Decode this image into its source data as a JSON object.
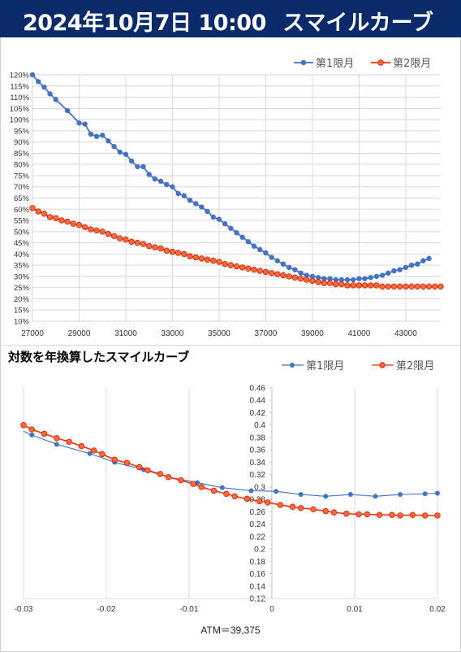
{
  "header": {
    "date": "2024年10月7日 10:00",
    "title": "スマイルカーブ"
  },
  "colors": {
    "first": "#4472c4",
    "second": "#ff2a00",
    "header_bg": "#0a2a6a"
  },
  "chart_data": [
    {
      "type": "line",
      "title": "",
      "xlim": [
        27000,
        44500
      ],
      "ylim": [
        10,
        120
      ],
      "x_ticks": [
        "27000",
        "29000",
        "31000",
        "33000",
        "35000",
        "37000",
        "39000",
        "41000",
        "43000"
      ],
      "y_ticks": [
        "10%",
        "15%",
        "20%",
        "25%",
        "30%",
        "35%",
        "40%",
        "45%",
        "50%",
        "55%",
        "60%",
        "65%",
        "70%",
        "75%",
        "80%",
        "85%",
        "90%",
        "95%",
        "100%",
        "105%",
        "110%",
        "115%",
        "120%"
      ],
      "legend_position": "top-right",
      "series": [
        {
          "name": "第1限月",
          "color": "#4472c4",
          "x": [
            27000,
            27250,
            27500,
            27750,
            28000,
            28500,
            29000,
            29250,
            29500,
            29750,
            30000,
            30250,
            30500,
            30750,
            31000,
            31250,
            31500,
            31750,
            32000,
            32250,
            32500,
            32750,
            33000,
            33250,
            33500,
            33750,
            34000,
            34250,
            34500,
            34750,
            35000,
            35250,
            35500,
            35750,
            36000,
            36250,
            36500,
            36750,
            37000,
            37250,
            37500,
            37750,
            38000,
            38250,
            38500,
            38750,
            39000,
            39250,
            39500,
            39750,
            40000,
            40250,
            40500,
            40750,
            41000,
            41250,
            41500,
            41750,
            42000,
            42250,
            42500,
            42750,
            43000,
            43250,
            43500,
            43750,
            44000
          ],
          "values": [
            120,
            117,
            114.5,
            111.5,
            109,
            104,
            98.5,
            98,
            93.5,
            92.5,
            93,
            90.5,
            88,
            85.5,
            84.5,
            81.5,
            79,
            79,
            75.5,
            73.5,
            72.5,
            71,
            70,
            67,
            66,
            64,
            62.5,
            61,
            59,
            56.5,
            55.5,
            53.5,
            51.5,
            49.5,
            47.5,
            45.5,
            43.5,
            42,
            40.5,
            38.5,
            37,
            35.5,
            34,
            33,
            31.5,
            30.5,
            30,
            29.5,
            29,
            29,
            28.5,
            28.5,
            28.5,
            28.5,
            29,
            29,
            29.5,
            30,
            30.5,
            31.5,
            32.5,
            33,
            34,
            35,
            35.5,
            37,
            38
          ]
        },
        {
          "name": "第2限月",
          "color": "#ff2a00",
          "x": [
            27000,
            27250,
            27500,
            27750,
            28000,
            28250,
            28500,
            28750,
            29000,
            29250,
            29500,
            29750,
            30000,
            30250,
            30500,
            30750,
            31000,
            31250,
            31500,
            31750,
            32000,
            32250,
            32500,
            32750,
            33000,
            33250,
            33500,
            33750,
            34000,
            34250,
            34500,
            34750,
            35000,
            35250,
            35500,
            35750,
            36000,
            36250,
            36500,
            36750,
            37000,
            37250,
            37500,
            37750,
            38000,
            38250,
            38500,
            38750,
            39000,
            39250,
            39500,
            39750,
            40000,
            40250,
            40500,
            40750,
            41000,
            41250,
            41500,
            41750,
            42000,
            42250,
            42500,
            42750,
            43000,
            43250,
            43500,
            43750,
            44000,
            44250,
            44500
          ],
          "values": [
            60.5,
            59,
            58,
            56.5,
            56,
            55,
            54.5,
            53.5,
            53,
            52,
            51,
            50.5,
            50,
            49,
            48,
            47,
            46.5,
            45.5,
            45,
            44.5,
            43.5,
            43,
            42.5,
            41.5,
            41,
            40.5,
            40,
            39,
            38.5,
            38,
            37.5,
            37,
            36.5,
            35.5,
            35,
            34.5,
            34,
            33.5,
            33,
            32.5,
            32,
            31.5,
            31,
            30.5,
            30,
            29.5,
            29,
            28.5,
            28,
            27.5,
            27,
            27,
            26.5,
            26.5,
            26,
            26,
            26,
            26,
            26,
            26,
            25.5,
            25.5,
            25.5,
            25.5,
            25.5,
            25.5,
            25.5,
            25.5,
            25.5,
            25.5,
            25.5
          ]
        }
      ]
    },
    {
      "type": "line",
      "title": "対数を年換算したスマイルカーブ",
      "xlim": [
        -0.03,
        0.02
      ],
      "ylim": [
        0.12,
        0.46
      ],
      "x_ticks": [
        "-0.03",
        "-0.02",
        "-0.01",
        "0",
        "0.01",
        "0.02"
      ],
      "y_ticks": [
        "0.12",
        "0.14",
        "0.16",
        "0.18",
        "0.2",
        "0.22",
        "0.24",
        "0.26",
        "0.28",
        "0.3",
        "0.32",
        "0.34",
        "0.36",
        "0.38",
        "0.4",
        "0.42",
        "0.44",
        "0.46"
      ],
      "legend_position": "top-right",
      "annotation": "ATM＝39,375",
      "series": [
        {
          "name": "第1限月",
          "color": "#4472c4",
          "x": [
            -0.03,
            -0.029,
            -0.026,
            -0.022,
            -0.019,
            -0.0155,
            -0.0125,
            -0.009,
            -0.006,
            -0.0025,
            0.0005,
            0.0035,
            0.0065,
            0.0095,
            0.0125,
            0.0155,
            0.0185,
            0.02
          ],
          "values": [
            0.39,
            0.384,
            0.369,
            0.354,
            0.34,
            0.328,
            0.316,
            0.307,
            0.299,
            0.294,
            0.293,
            0.288,
            0.285,
            0.288,
            0.285,
            0.288,
            0.289,
            0.29
          ]
        },
        {
          "name": "第2限月",
          "color": "#ff2a00",
          "x": [
            -0.03,
            -0.029,
            -0.0275,
            -0.026,
            -0.0245,
            -0.023,
            -0.0215,
            -0.0205,
            -0.019,
            -0.0175,
            -0.016,
            -0.015,
            -0.0135,
            -0.0125,
            -0.011,
            -0.0095,
            -0.0085,
            -0.007,
            -0.0055,
            -0.0045,
            -0.003,
            -0.0015,
            -0.0005,
            0.001,
            0.0025,
            0.0035,
            0.005,
            0.0065,
            0.0075,
            0.009,
            0.0105,
            0.0115,
            0.013,
            0.0145,
            0.0155,
            0.017,
            0.0185,
            0.02
          ],
          "values": [
            0.4,
            0.393,
            0.386,
            0.379,
            0.373,
            0.366,
            0.359,
            0.353,
            0.344,
            0.339,
            0.332,
            0.327,
            0.321,
            0.316,
            0.311,
            0.305,
            0.3,
            0.294,
            0.289,
            0.285,
            0.281,
            0.277,
            0.275,
            0.271,
            0.268,
            0.266,
            0.264,
            0.261,
            0.259,
            0.257,
            0.256,
            0.256,
            0.255,
            0.255,
            0.254,
            0.255,
            0.254,
            0.254
          ]
        }
      ]
    }
  ]
}
